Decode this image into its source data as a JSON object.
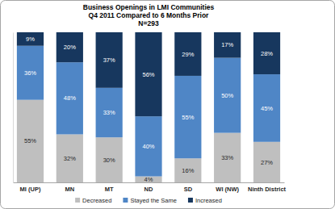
{
  "chart_data": {
    "type": "bar",
    "stacked": true,
    "title": "Business Openings in LMI Communities",
    "subtitle": "Q4 2011 Compared to 6 Months Prior",
    "annotations": [
      "N=293"
    ],
    "categories": [
      "MI (UP)",
      "MN",
      "MT",
      "ND",
      "SD",
      "WI (NW)",
      "Ninth District"
    ],
    "series": [
      {
        "name": "Decreased",
        "color": "#bfbfbf",
        "values": [
          55,
          32,
          30,
          4,
          16,
          33,
          27
        ],
        "value_labels": [
          "55%",
          "32%",
          "30%",
          "4%",
          "16%",
          "33%",
          "27%"
        ]
      },
      {
        "name": "Stayed the Same",
        "color": "#4f86c6",
        "values": [
          36,
          48,
          33,
          40,
          55,
          50,
          45
        ],
        "value_labels": [
          "36%",
          "48%",
          "33%",
          "40%",
          "55%",
          "50%",
          "45%"
        ]
      },
      {
        "name": "Increased",
        "color": "#17375e",
        "values": [
          9,
          20,
          37,
          56,
          29,
          17,
          28
        ],
        "value_labels": [
          "9%",
          "20%",
          "37%",
          "56%",
          "29%",
          "17%",
          "28%"
        ]
      }
    ],
    "ylim": [
      0,
      100
    ],
    "data_labels": true,
    "tick_labels": "x",
    "legend": "bottom"
  }
}
